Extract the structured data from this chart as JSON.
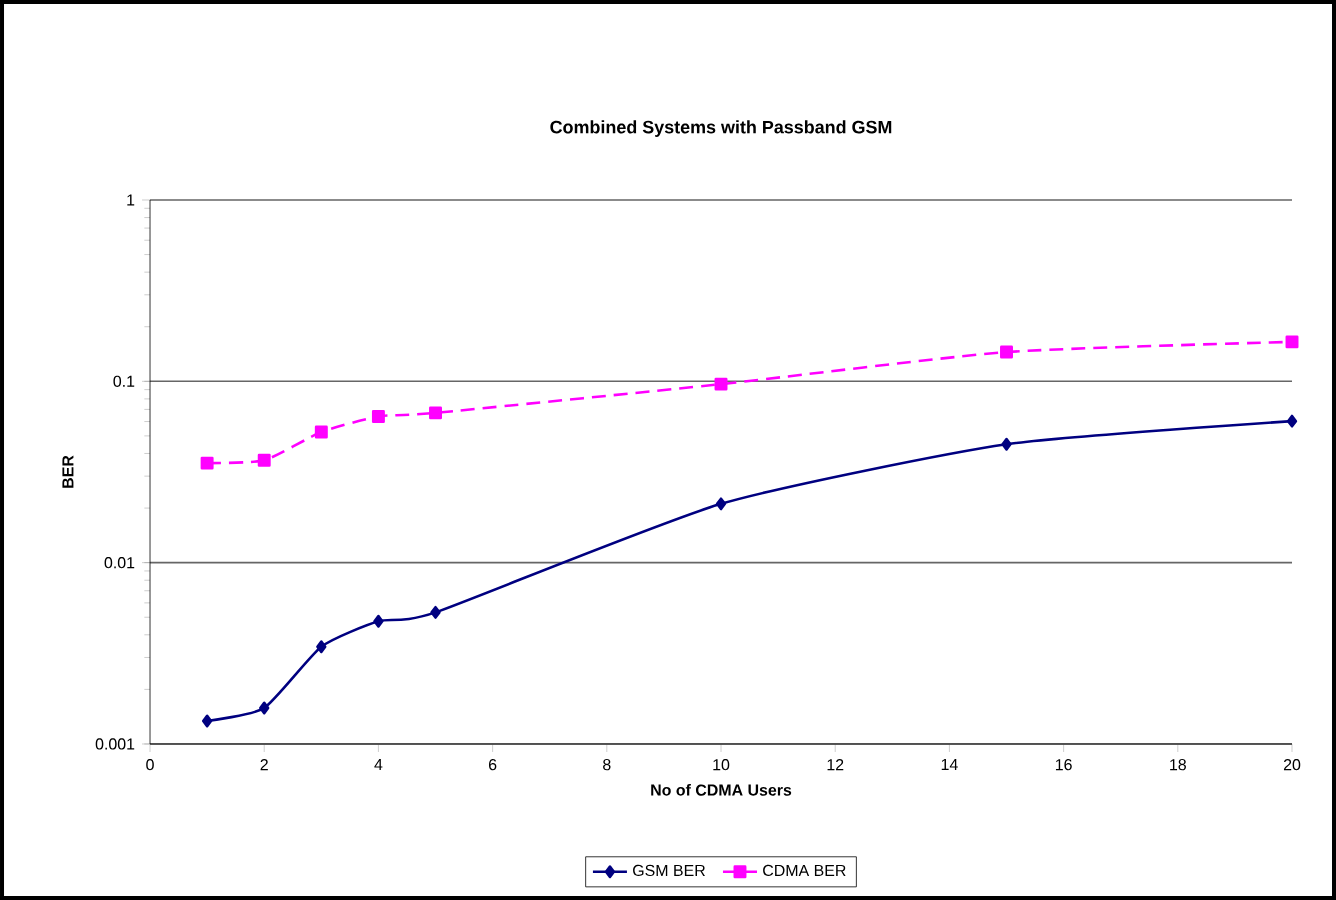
{
  "chart_data": {
    "type": "line",
    "title": "Combined Systems with Passband GSM",
    "xlabel": "No of CDMA Users",
    "ylabel": "BER",
    "log": "y",
    "grid": "y",
    "legend": "bottom",
    "x": [
      1,
      2,
      3,
      4,
      5,
      10,
      15,
      20
    ],
    "xlim": [
      0,
      20
    ],
    "xticks": [
      0,
      2,
      4,
      6,
      8,
      10,
      12,
      14,
      16,
      18,
      20
    ],
    "ylim": [
      0.001,
      1
    ],
    "yticks": [
      0.001,
      0.01,
      0.1,
      1
    ],
    "series": [
      {
        "name": "GSM BER",
        "color": "#000080",
        "marker": "diamond",
        "line_style": "solid",
        "values": [
          0.00134,
          0.00158,
          0.00344,
          0.00475,
          0.00532,
          0.0211,
          0.045,
          0.0603
        ]
      },
      {
        "name": "CDMA BER",
        "color": "#ff00ff",
        "marker": "square",
        "line_style": "dashed",
        "values": [
          0.0354,
          0.0367,
          0.0525,
          0.064,
          0.067,
          0.0965,
          0.145,
          0.165
        ]
      }
    ]
  }
}
